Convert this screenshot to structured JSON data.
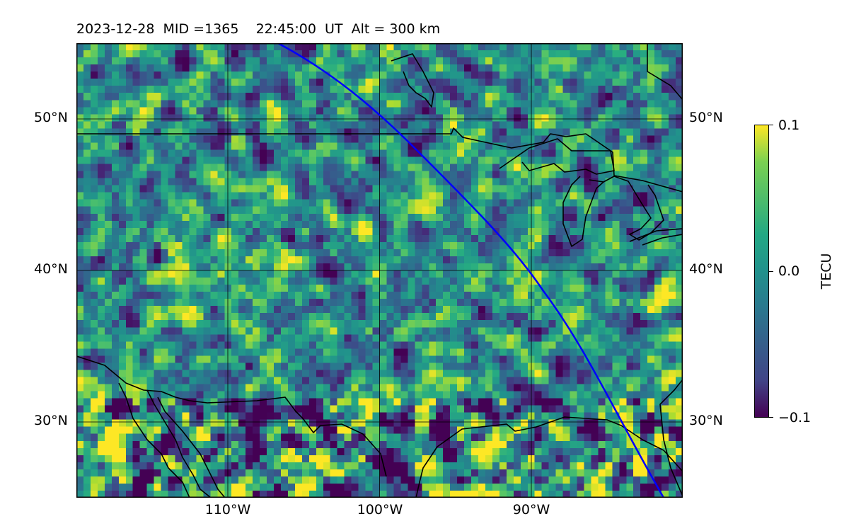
{
  "title": "2023-12-28  MID =1365    22:45:00  UT  Alt = 300 km",
  "map": {
    "lon_range": [
      -120,
      -80
    ],
    "lat_range": [
      25,
      55
    ],
    "lat_labels": [
      "50°N",
      "40°N",
      "30°N"
    ],
    "lon_labels": [
      "110°W",
      "100°W",
      "90°W"
    ],
    "colormap": "viridis",
    "terminator_color": "#0000ff",
    "coastline_color": "#000000"
  },
  "colorbar": {
    "label": "TECU",
    "ticks": [
      "0.1",
      "0.0",
      "−0.1"
    ],
    "range": [
      -0.1,
      0.1
    ]
  }
}
